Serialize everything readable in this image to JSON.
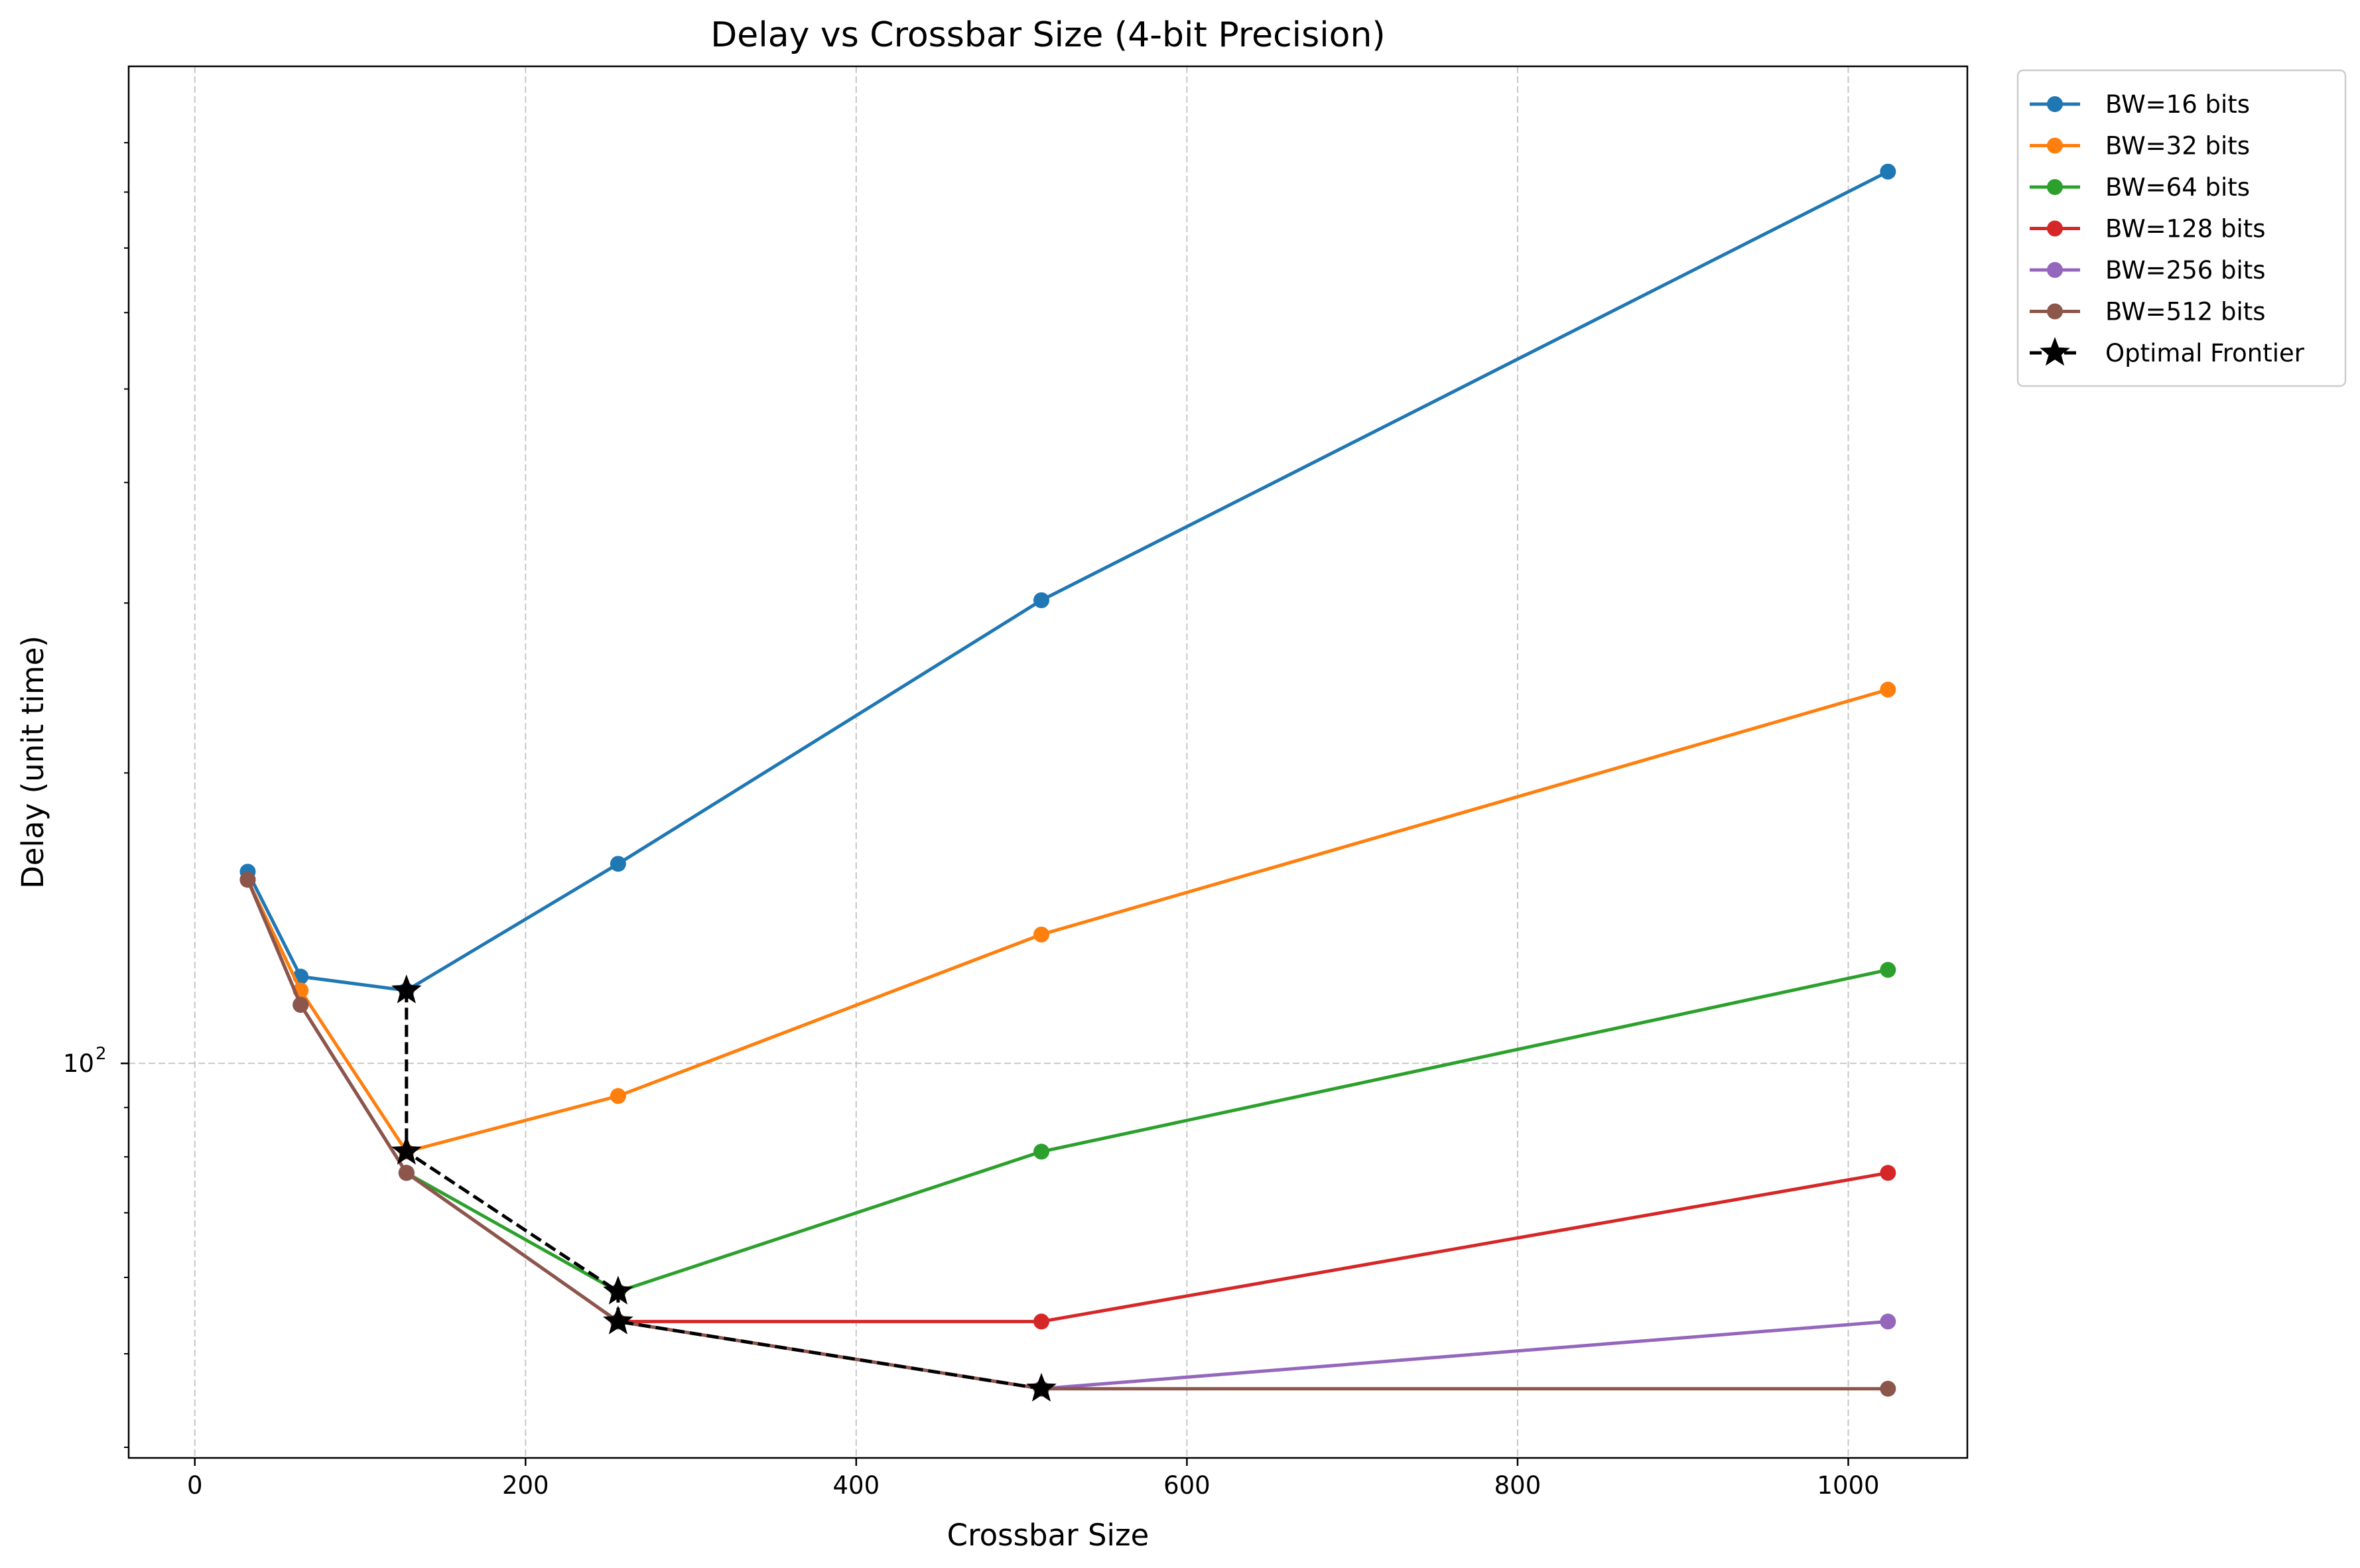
{
  "chart_data": {
    "type": "line",
    "title": "Delay vs Crossbar Size (4-bit Precision)",
    "xlabel": "Crossbar Size",
    "ylabel": "Delay (unit time)",
    "xlim": [
      -40,
      1072
    ],
    "ylim": [
      39,
      1080
    ],
    "yscale": "log",
    "x_ticks": [
      0,
      200,
      400,
      600,
      800,
      1000
    ],
    "x_tick_labels": [
      "0",
      "200",
      "400",
      "600",
      "800",
      "1000"
    ],
    "y_major_ticks": [
      100
    ],
    "y_major_tick_base": "10",
    "y_major_tick_exp": "2",
    "y_minor_ticks": [
      40,
      50,
      60,
      70,
      80,
      90,
      200,
      300,
      400,
      500,
      600,
      700,
      800,
      900
    ],
    "grid": true,
    "legend_position": "outside-top-right",
    "series": [
      {
        "name": "BW=16 bits",
        "color": "#1f77b4",
        "x": [
          32,
          64,
          128,
          256,
          512,
          1024
        ],
        "y": [
          158,
          123,
          119,
          161,
          302,
          840
        ]
      },
      {
        "name": "BW=32 bits",
        "color": "#ff7f0e",
        "x": [
          32,
          64,
          128,
          256,
          512,
          1024
        ],
        "y": [
          155,
          119,
          81,
          92.5,
          136,
          244
        ]
      },
      {
        "name": "BW=64 bits",
        "color": "#2ca02c",
        "x": [
          32,
          64,
          128,
          256,
          512,
          1024
        ],
        "y": [
          155,
          115,
          77,
          58,
          81,
          125
        ]
      },
      {
        "name": "BW=128 bits",
        "color": "#d62728",
        "x": [
          32,
          64,
          128,
          256,
          512,
          1024
        ],
        "y": [
          155,
          115,
          77,
          54,
          54,
          77
        ]
      },
      {
        "name": "BW=256 bits",
        "color": "#9467bd",
        "x": [
          32,
          64,
          128,
          256,
          512,
          1024
        ],
        "y": [
          155,
          115,
          77,
          54,
          46,
          54
        ]
      },
      {
        "name": "BW=512 bits",
        "color": "#8c564b",
        "x": [
          32,
          64,
          128,
          256,
          512,
          1024
        ],
        "y": [
          155,
          115,
          77,
          54,
          46,
          46
        ]
      }
    ],
    "frontier": {
      "name": "Optimal Frontier",
      "color": "#000000",
      "x": [
        128,
        128,
        256,
        256,
        512
      ],
      "y": [
        119,
        81,
        58,
        54,
        46
      ]
    }
  }
}
